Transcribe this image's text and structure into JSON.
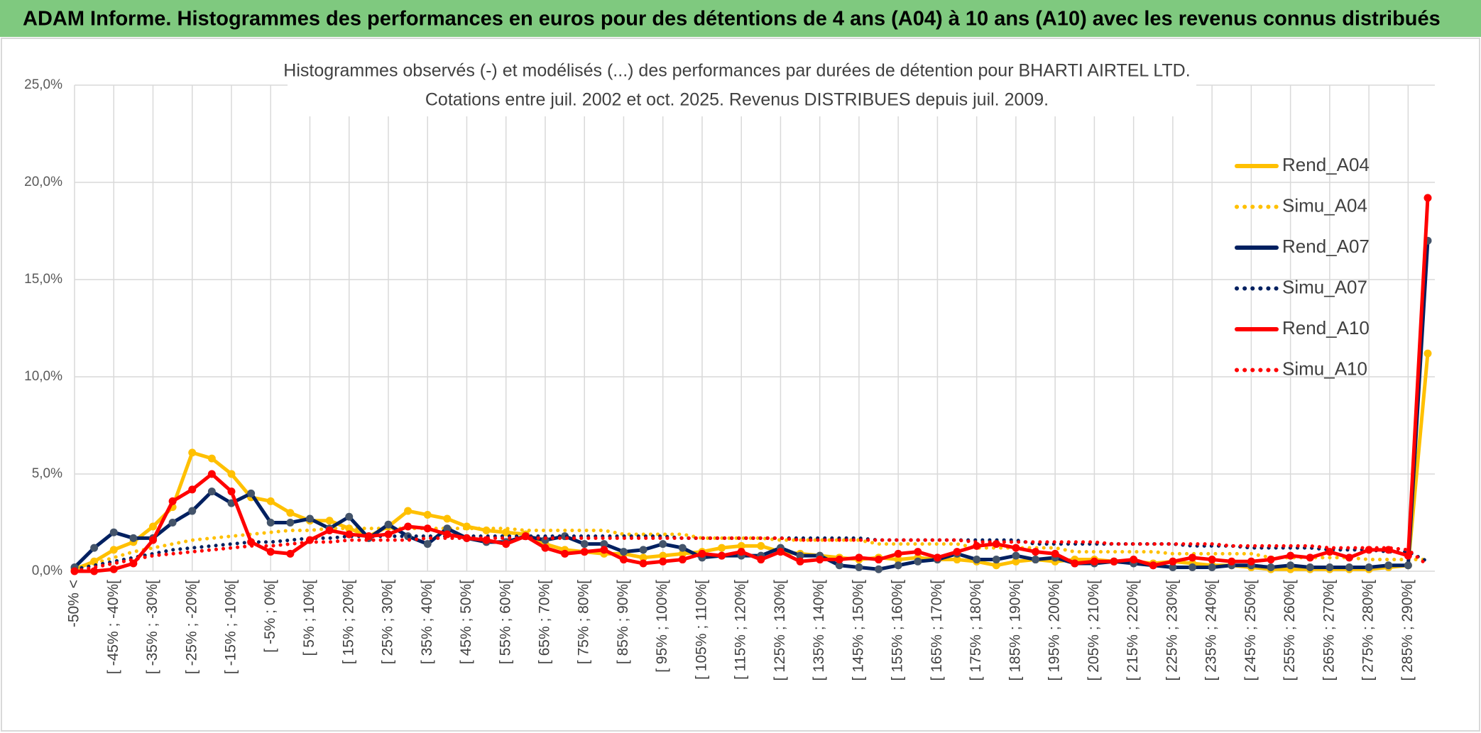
{
  "header": {
    "title": "ADAM Informe. Histogrammes des performances en euros pour des détentions de 4 ans (A04) à 10 ans (A10) avec les revenus connus distribués"
  },
  "chart_data": {
    "type": "line",
    "title": "Histogrammes observés (-) et modélisés (...) des performances par durées de détention pour BHARTI AIRTEL LTD.",
    "subtitle": "Cotations entre juil. 2002 et oct. 2025. Revenus DISTRIBUES depuis juil. 2009.",
    "categories": [
      "-50% <",
      null,
      "[ -45% ; -40%[",
      null,
      "[ -35% ; -30%[",
      null,
      "[ -25% ; -20%[",
      null,
      "[ -15% ; -10%[",
      null,
      "[ -5% ; 0%[",
      null,
      "[ 5% ; 10%[",
      null,
      "[ 15% ; 20%[",
      null,
      "[ 25% ; 30%[",
      null,
      "[ 35% ; 40%[",
      null,
      "[ 45% ; 50%[",
      null,
      "[ 55% ; 60%[",
      null,
      "[ 65% ; 70%[",
      null,
      "[ 75% ; 80%[",
      null,
      "[ 85% ; 90%[",
      null,
      "[ 95% ; 100%[",
      null,
      "[ 105% ; 110%[",
      null,
      "[ 115% ; 120%[",
      null,
      "[ 125% ; 130%[",
      null,
      "[ 135% ; 140%[",
      null,
      "[ 145% ; 150%[",
      null,
      "[ 155% ; 160%[",
      null,
      "[ 165% ; 170%[",
      null,
      "[ 175% ; 180%[",
      null,
      "[ 185% ; 190%[",
      null,
      "[ 195% ; 200%[",
      null,
      "[ 205% ; 210%[",
      null,
      "[ 215% ; 220%[",
      null,
      "[ 225% ; 230%[",
      null,
      "[ 235% ; 240%[",
      null,
      "[ 245% ; 250%[",
      null,
      "[ 255% ; 260%[",
      null,
      "[ 265% ; 270%[",
      null,
      "[ 275% ; 280%[",
      null,
      "[ 285% ; 290%[",
      null
    ],
    "ylim": [
      0,
      25
    ],
    "yticks": [
      {
        "value": 0,
        "label": "0,0%"
      },
      {
        "value": 5,
        "label": "5,0%"
      },
      {
        "value": 10,
        "label": "10,0%"
      },
      {
        "value": 15,
        "label": "15,0%"
      },
      {
        "value": 20,
        "label": "20,0%"
      },
      {
        "value": 25,
        "label": "25,0%"
      }
    ],
    "grid": true,
    "legend": "right",
    "series": [
      {
        "name": "Rend_A04",
        "color": "#FFC000",
        "style": "solid",
        "markers": true,
        "values": [
          0.1,
          0.5,
          1.1,
          1.5,
          2.3,
          3.3,
          6.1,
          5.8,
          5.0,
          3.8,
          3.6,
          3.0,
          2.6,
          2.6,
          2.2,
          1.8,
          2.3,
          3.1,
          2.9,
          2.7,
          2.3,
          2.1,
          2.0,
          1.9,
          1.4,
          1.1,
          1.0,
          0.9,
          0.9,
          0.7,
          0.8,
          0.9,
          1.0,
          1.2,
          1.3,
          1.3,
          1.0,
          0.9,
          0.8,
          0.7,
          0.6,
          0.7,
          0.6,
          0.7,
          0.6,
          0.6,
          0.5,
          0.3,
          0.5,
          0.6,
          0.5,
          0.6,
          0.6,
          0.5,
          0.5,
          0.4,
          0.5,
          0.4,
          0.3,
          0.3,
          0.2,
          0.1,
          0.1,
          0.1,
          0.1,
          0.1,
          0.1,
          0.2,
          0.3,
          11.2
        ]
      },
      {
        "name": "Simu_A04",
        "color": "#FFC000",
        "style": "dotted",
        "markers": false,
        "values": [
          0.1,
          0.4,
          0.7,
          1.0,
          1.2,
          1.4,
          1.6,
          1.7,
          1.8,
          1.9,
          2.0,
          2.1,
          2.1,
          2.2,
          2.2,
          2.2,
          2.2,
          2.2,
          2.2,
          2.2,
          2.2,
          2.2,
          2.2,
          2.1,
          2.1,
          2.1,
          2.1,
          2.1,
          1.9,
          1.9,
          1.9,
          1.9,
          1.7,
          1.7,
          1.7,
          1.7,
          1.6,
          1.6,
          1.6,
          1.6,
          1.6,
          1.4,
          1.4,
          1.4,
          1.4,
          1.4,
          1.2,
          1.2,
          1.2,
          1.2,
          1.2,
          1.0,
          1.0,
          1.0,
          1.0,
          1.0,
          0.9,
          0.9,
          0.9,
          0.9,
          0.9,
          0.7,
          0.7,
          0.7,
          0.7,
          0.7,
          0.6,
          0.6,
          0.6,
          0.6
        ]
      },
      {
        "name": "Rend_A07",
        "color": "#002060",
        "style": "solid",
        "markers": true,
        "values": [
          0.2,
          1.2,
          2.0,
          1.7,
          1.7,
          2.5,
          3.1,
          4.1,
          3.5,
          4.0,
          2.5,
          2.5,
          2.7,
          2.2,
          2.8,
          1.7,
          2.4,
          1.8,
          1.4,
          2.2,
          1.7,
          1.5,
          1.5,
          1.8,
          1.6,
          1.8,
          1.4,
          1.4,
          1.0,
          1.1,
          1.4,
          1.2,
          0.7,
          0.8,
          0.8,
          0.8,
          1.2,
          0.8,
          0.8,
          0.3,
          0.2,
          0.1,
          0.3,
          0.5,
          0.6,
          0.9,
          0.6,
          0.6,
          0.8,
          0.6,
          0.7,
          0.4,
          0.4,
          0.5,
          0.4,
          0.3,
          0.2,
          0.2,
          0.2,
          0.3,
          0.3,
          0.2,
          0.3,
          0.2,
          0.2,
          0.2,
          0.2,
          0.3,
          0.3,
          17.0
        ]
      },
      {
        "name": "Simu_A07",
        "color": "#002060",
        "style": "dotted",
        "markers": false,
        "values": [
          0.1,
          0.3,
          0.5,
          0.7,
          0.9,
          1.1,
          1.2,
          1.3,
          1.4,
          1.5,
          1.5,
          1.6,
          1.7,
          1.7,
          1.8,
          1.8,
          1.8,
          1.8,
          1.8,
          1.8,
          1.8,
          1.8,
          1.8,
          1.8,
          1.8,
          1.8,
          1.8,
          1.8,
          1.8,
          1.8,
          1.8,
          1.7,
          1.7,
          1.7,
          1.7,
          1.7,
          1.7,
          1.7,
          1.7,
          1.7,
          1.7,
          1.6,
          1.6,
          1.6,
          1.6,
          1.6,
          1.6,
          1.6,
          1.6,
          1.4,
          1.4,
          1.4,
          1.4,
          1.4,
          1.4,
          1.4,
          1.4,
          1.3,
          1.3,
          1.3,
          1.2,
          1.2,
          1.2,
          1.2,
          1.1,
          1.1,
          1.1,
          1.0,
          1.0,
          0.5
        ]
      },
      {
        "name": "Rend_A10",
        "color": "#FF0000",
        "style": "solid",
        "markers": true,
        "values": [
          0.0,
          0.0,
          0.1,
          0.4,
          1.6,
          3.6,
          4.2,
          5.0,
          4.1,
          1.5,
          1.0,
          0.9,
          1.6,
          2.1,
          1.9,
          1.8,
          1.9,
          2.3,
          2.2,
          1.9,
          1.7,
          1.6,
          1.4,
          1.8,
          1.2,
          0.9,
          1.0,
          1.1,
          0.6,
          0.4,
          0.5,
          0.6,
          0.9,
          0.8,
          1.0,
          0.6,
          1.0,
          0.5,
          0.6,
          0.6,
          0.7,
          0.6,
          0.9,
          1.0,
          0.7,
          1.0,
          1.3,
          1.4,
          1.2,
          1.0,
          0.9,
          0.4,
          0.5,
          0.5,
          0.6,
          0.3,
          0.5,
          0.7,
          0.6,
          0.5,
          0.5,
          0.6,
          0.8,
          0.7,
          1.0,
          0.7,
          1.1,
          1.1,
          0.8,
          19.2
        ]
      },
      {
        "name": "Simu_A10",
        "color": "#FF0000",
        "style": "dotted",
        "markers": false,
        "values": [
          0.0,
          0.2,
          0.4,
          0.6,
          0.8,
          0.9,
          1.0,
          1.1,
          1.2,
          1.3,
          1.3,
          1.4,
          1.5,
          1.5,
          1.6,
          1.6,
          1.6,
          1.6,
          1.7,
          1.7,
          1.7,
          1.7,
          1.7,
          1.7,
          1.7,
          1.7,
          1.7,
          1.7,
          1.7,
          1.7,
          1.7,
          1.7,
          1.7,
          1.7,
          1.7,
          1.7,
          1.7,
          1.6,
          1.6,
          1.6,
          1.6,
          1.6,
          1.6,
          1.6,
          1.6,
          1.6,
          1.5,
          1.5,
          1.5,
          1.5,
          1.5,
          1.5,
          1.5,
          1.4,
          1.4,
          1.4,
          1.4,
          1.4,
          1.4,
          1.3,
          1.3,
          1.3,
          1.3,
          1.3,
          1.2,
          1.2,
          1.2,
          1.2,
          1.1,
          0.3
        ]
      }
    ]
  }
}
